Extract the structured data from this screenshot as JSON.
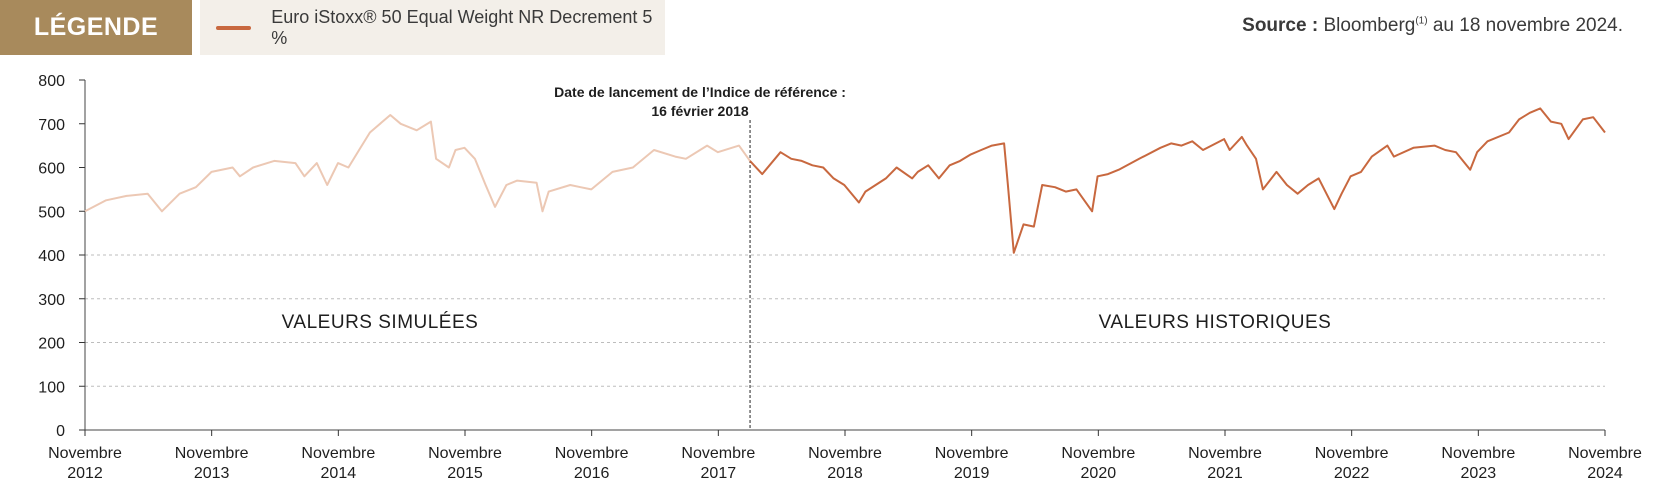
{
  "legend": {
    "tag": "LÉGENDE",
    "series_label": "Euro iStoxx® 50 Equal Weight NR Decrement 5 %",
    "series_color": "#c8683f",
    "simulated_color": "#ecc8b4"
  },
  "source": {
    "bold": "Source :",
    "text_before": "Bloomberg",
    "superscript": "(1)",
    "text_after": " au 18 novembre 2024."
  },
  "chart_data": {
    "type": "line",
    "ylim": [
      0,
      800
    ],
    "yticks": [
      "0",
      "100",
      "200",
      "300",
      "400",
      "500",
      "600",
      "700",
      "800"
    ],
    "xticks": [
      {
        "month": "Novembre",
        "year": "2012"
      },
      {
        "month": "Novembre",
        "year": "2013"
      },
      {
        "month": "Novembre",
        "year": "2014"
      },
      {
        "month": "Novembre",
        "year": "2015"
      },
      {
        "month": "Novembre",
        "year": "2016"
      },
      {
        "month": "Novembre",
        "year": "2017"
      },
      {
        "month": "Novembre",
        "year": "2018"
      },
      {
        "month": "Novembre",
        "year": "2019"
      },
      {
        "month": "Novembre",
        "year": "2020"
      },
      {
        "month": "Novembre",
        "year": "2021"
      },
      {
        "month": "Novembre",
        "year": "2022"
      },
      {
        "month": "Novembre",
        "year": "2023"
      },
      {
        "month": "Novembre",
        "year": "2024"
      }
    ],
    "launch_line": {
      "date": "2018-02-16",
      "label_line1": "Date de lancement de l’Indice de référence :",
      "label_line2": "16 février 2018"
    },
    "region_labels": {
      "simulated": "VALEURS SIMULÉES",
      "historical": "VALEURS HISTORIQUES"
    },
    "series": [
      {
        "kind": "simulated",
        "points": [
          [
            "2012-11-15",
            500
          ],
          [
            "2013-01-15",
            525
          ],
          [
            "2013-03-15",
            535
          ],
          [
            "2013-05-15",
            540
          ],
          [
            "2013-06-25",
            500
          ],
          [
            "2013-08-15",
            540
          ],
          [
            "2013-10-01",
            555
          ],
          [
            "2013-11-15",
            590
          ],
          [
            "2014-01-15",
            600
          ],
          [
            "2014-02-05",
            580
          ],
          [
            "2014-03-15",
            600
          ],
          [
            "2014-05-15",
            615
          ],
          [
            "2014-07-15",
            610
          ],
          [
            "2014-08-10",
            580
          ],
          [
            "2014-09-15",
            610
          ],
          [
            "2014-10-15",
            560
          ],
          [
            "2014-11-15",
            610
          ],
          [
            "2014-12-15",
            600
          ],
          [
            "2015-01-15",
            640
          ],
          [
            "2015-02-15",
            680
          ],
          [
            "2015-04-15",
            720
          ],
          [
            "2015-05-15",
            700
          ],
          [
            "2015-06-30",
            685
          ],
          [
            "2015-08-10",
            705
          ],
          [
            "2015-08-25",
            620
          ],
          [
            "2015-10-01",
            600
          ],
          [
            "2015-10-20",
            640
          ],
          [
            "2015-11-15",
            645
          ],
          [
            "2015-12-15",
            620
          ],
          [
            "2016-01-15",
            560
          ],
          [
            "2016-02-11",
            510
          ],
          [
            "2016-03-15",
            560
          ],
          [
            "2016-04-15",
            570
          ],
          [
            "2016-06-10",
            565
          ],
          [
            "2016-06-27",
            500
          ],
          [
            "2016-07-15",
            545
          ],
          [
            "2016-09-15",
            560
          ],
          [
            "2016-10-15",
            555
          ],
          [
            "2016-11-15",
            550
          ],
          [
            "2017-01-15",
            590
          ],
          [
            "2017-03-15",
            600
          ],
          [
            "2017-05-15",
            640
          ],
          [
            "2017-07-15",
            625
          ],
          [
            "2017-08-15",
            620
          ],
          [
            "2017-10-15",
            650
          ],
          [
            "2017-11-15",
            635
          ],
          [
            "2018-01-15",
            650
          ],
          [
            "2018-02-16",
            615
          ]
        ]
      },
      {
        "kind": "historical",
        "points": [
          [
            "2018-02-16",
            615
          ],
          [
            "2018-03-23",
            585
          ],
          [
            "2018-05-15",
            635
          ],
          [
            "2018-06-15",
            620
          ],
          [
            "2018-07-15",
            615
          ],
          [
            "2018-08-15",
            605
          ],
          [
            "2018-09-15",
            600
          ],
          [
            "2018-10-15",
            575
          ],
          [
            "2018-11-15",
            560
          ],
          [
            "2018-12-27",
            520
          ],
          [
            "2019-01-15",
            545
          ],
          [
            "2019-03-15",
            575
          ],
          [
            "2019-04-15",
            600
          ],
          [
            "2019-05-30",
            575
          ],
          [
            "2019-06-15",
            590
          ],
          [
            "2019-07-15",
            605
          ],
          [
            "2019-08-15",
            575
          ],
          [
            "2019-09-15",
            605
          ],
          [
            "2019-10-15",
            615
          ],
          [
            "2019-11-15",
            630
          ],
          [
            "2019-12-15",
            640
          ],
          [
            "2020-01-15",
            650
          ],
          [
            "2020-02-19",
            655
          ],
          [
            "2020-03-01",
            560
          ],
          [
            "2020-03-18",
            405
          ],
          [
            "2020-04-15",
            470
          ],
          [
            "2020-05-15",
            465
          ],
          [
            "2020-06-08",
            560
          ],
          [
            "2020-07-15",
            555
          ],
          [
            "2020-08-15",
            545
          ],
          [
            "2020-09-15",
            550
          ],
          [
            "2020-10-30",
            500
          ],
          [
            "2020-11-15",
            580
          ],
          [
            "2020-12-15",
            585
          ],
          [
            "2021-01-15",
            595
          ],
          [
            "2021-03-15",
            620
          ],
          [
            "2021-05-15",
            645
          ],
          [
            "2021-06-15",
            655
          ],
          [
            "2021-07-15",
            650
          ],
          [
            "2021-08-15",
            660
          ],
          [
            "2021-09-15",
            640
          ],
          [
            "2021-11-15",
            665
          ],
          [
            "2021-12-01",
            640
          ],
          [
            "2022-01-05",
            670
          ],
          [
            "2022-01-20",
            650
          ],
          [
            "2022-02-15",
            620
          ],
          [
            "2022-03-07",
            550
          ],
          [
            "2022-04-15",
            590
          ],
          [
            "2022-05-15",
            560
          ],
          [
            "2022-06-15",
            540
          ],
          [
            "2022-07-15",
            560
          ],
          [
            "2022-08-15",
            575
          ],
          [
            "2022-09-29",
            505
          ],
          [
            "2022-10-20",
            540
          ],
          [
            "2022-11-15",
            580
          ],
          [
            "2022-12-15",
            590
          ],
          [
            "2023-01-15",
            625
          ],
          [
            "2023-03-01",
            650
          ],
          [
            "2023-03-20",
            625
          ],
          [
            "2023-05-15",
            645
          ],
          [
            "2023-07-15",
            650
          ],
          [
            "2023-08-15",
            640
          ],
          [
            "2023-09-15",
            635
          ],
          [
            "2023-10-26",
            595
          ],
          [
            "2023-11-15",
            635
          ],
          [
            "2023-12-15",
            660
          ],
          [
            "2024-02-15",
            680
          ],
          [
            "2024-03-15",
            710
          ],
          [
            "2024-04-15",
            725
          ],
          [
            "2024-05-15",
            735
          ],
          [
            "2024-06-15",
            705
          ],
          [
            "2024-07-15",
            700
          ],
          [
            "2024-08-05",
            665
          ],
          [
            "2024-09-15",
            710
          ],
          [
            "2024-10-15",
            715
          ],
          [
            "2024-11-18",
            680
          ]
        ]
      }
    ]
  }
}
